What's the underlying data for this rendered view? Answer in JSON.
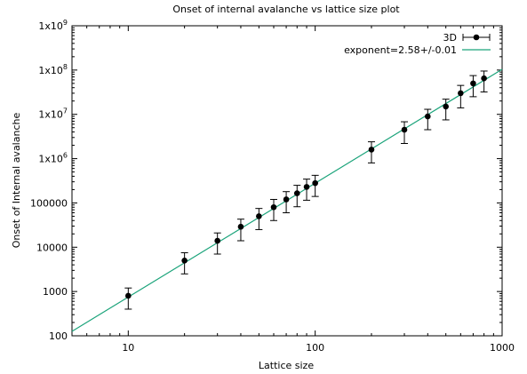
{
  "chart_data": {
    "type": "scatter",
    "title": "Onset of internal avalanche vs lattice size plot",
    "xlabel": "Lattice size",
    "ylabel": "Onset of Internal avalanche",
    "xscale": "log",
    "yscale": "log",
    "xlim": [
      5,
      1000
    ],
    "ylim": [
      100,
      1000000000
    ],
    "x_ticks": [
      {
        "value": 10,
        "label": "10"
      },
      {
        "value": 100,
        "label": "100"
      },
      {
        "value": 1000,
        "label": "1000"
      }
    ],
    "y_ticks": [
      {
        "value": 100,
        "label": "100"
      },
      {
        "value": 1000,
        "label": "1000"
      },
      {
        "value": 10000,
        "label": "10000"
      },
      {
        "value": 100000,
        "label": "100000"
      },
      {
        "value": 1000000,
        "label": "1x10",
        "sup": "6"
      },
      {
        "value": 10000000,
        "label": "1x10",
        "sup": "7"
      },
      {
        "value": 100000000,
        "label": "1x10",
        "sup": "8"
      },
      {
        "value": 1000000000,
        "label": "1x10",
        "sup": "9"
      }
    ],
    "legend_position": "top-right",
    "series": [
      {
        "name": "3D",
        "kind": "points-with-errorbars",
        "color": "#000000",
        "points": [
          {
            "x": 10,
            "y": 800,
            "ylow": 400,
            "yhigh": 1200
          },
          {
            "x": 20,
            "y": 5000,
            "ylow": 2500,
            "yhigh": 7500
          },
          {
            "x": 30,
            "y": 14000,
            "ylow": 7000,
            "yhigh": 21000
          },
          {
            "x": 40,
            "y": 29000,
            "ylow": 14000,
            "yhigh": 43000
          },
          {
            "x": 50,
            "y": 50000,
            "ylow": 25000,
            "yhigh": 75000
          },
          {
            "x": 60,
            "y": 80000,
            "ylow": 40000,
            "yhigh": 120000
          },
          {
            "x": 70,
            "y": 120000,
            "ylow": 60000,
            "yhigh": 180000
          },
          {
            "x": 80,
            "y": 165000,
            "ylow": 82000,
            "yhigh": 250000
          },
          {
            "x": 90,
            "y": 230000,
            "ylow": 115000,
            "yhigh": 345000
          },
          {
            "x": 100,
            "y": 280000,
            "ylow": 140000,
            "yhigh": 420000
          },
          {
            "x": 200,
            "y": 1600000,
            "ylow": 800000,
            "yhigh": 2400000
          },
          {
            "x": 300,
            "y": 4500000,
            "ylow": 2200000,
            "yhigh": 6800000
          },
          {
            "x": 400,
            "y": 9000000,
            "ylow": 4500000,
            "yhigh": 13000000
          },
          {
            "x": 500,
            "y": 15000000,
            "ylow": 7500000,
            "yhigh": 22000000
          },
          {
            "x": 600,
            "y": 30000000,
            "ylow": 14000000,
            "yhigh": 45000000
          },
          {
            "x": 700,
            "y": 50000000,
            "ylow": 25000000,
            "yhigh": 75000000
          },
          {
            "x": 800,
            "y": 65000000,
            "ylow": 32000000,
            "yhigh": 95000000
          }
        ]
      },
      {
        "name": "exponent=2.58+/-0.01",
        "kind": "fit-line",
        "color": "#1aa37a",
        "points": [
          {
            "x": 5,
            "y": 126
          },
          {
            "x": 1000,
            "y": 104000000
          }
        ]
      }
    ]
  }
}
